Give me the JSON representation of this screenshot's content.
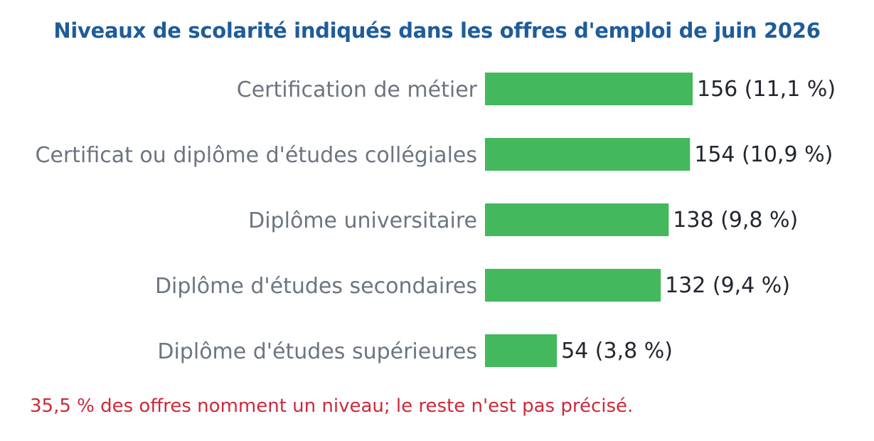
{
  "chart_data": {
    "type": "bar",
    "orientation": "horizontal",
    "title": "Niveaux de scolarité indiqués dans les offres d'emploi de juin 2026",
    "categories": [
      "Certification de métier",
      "Certificat ou diplôme d'études collégiales",
      "Diplôme universitaire",
      "Diplôme d'études secondaires",
      "Diplôme d'études supérieures"
    ],
    "values": [
      156,
      154,
      138,
      132,
      54
    ],
    "percent_labels": [
      "(11,1 %)",
      "(10,9 %)",
      "(9,8 %)",
      "(9,4 %)",
      "(3,8 %)"
    ],
    "xlim": [
      0,
      156
    ],
    "grid": false,
    "legend": "none",
    "colors": {
      "bar": "#43b85c",
      "title": "#1f5c99",
      "category_label": "#6c7580",
      "value_label": "#22262e",
      "footnote": "#cc2a3a"
    }
  },
  "footnote": "35,5 % des offres nomment un niveau; le reste n'est pas précisé."
}
